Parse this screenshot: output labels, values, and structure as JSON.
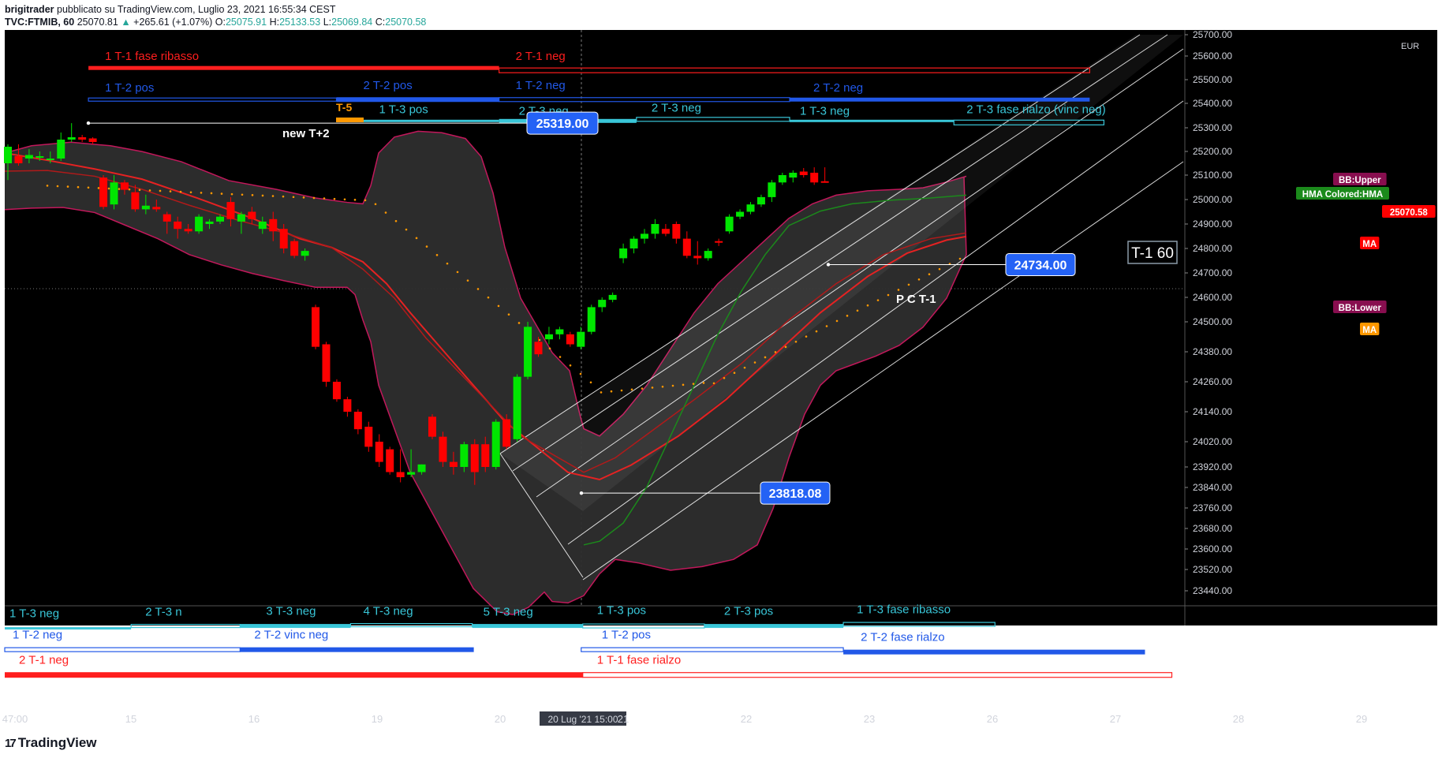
{
  "header": {
    "author": "brigitrader",
    "published": "pubblicato su TradingView.com, Luglio 23, 2021 16:55:34 CEST",
    "symbol": "TVC:FTMIB, 60",
    "last": "25070.81",
    "change": "+265.61 (+1.07%)",
    "o_label": "O:",
    "o": "25075.91",
    "h_label": "H:",
    "h": "25133.53",
    "l_label": "L:",
    "l": "25069.84",
    "c_label": "C:",
    "c": "25070.58"
  },
  "colors": {
    "background": "#000000",
    "up": "#00e600",
    "down": "#ff0000",
    "bb_band": "#c2185b",
    "bb_fill": "#2e2e2e",
    "ma_red": "#e52222",
    "ma_orange": "#ff9800",
    "hma": "#1b8a1b",
    "red_level": "#ff1e1e",
    "blue_level": "#2158e8",
    "cyan_level": "#39c6d8",
    "label_blue": "#2462f5",
    "white_text": "#ffffff"
  },
  "chart_data": {
    "type": "candlestick",
    "price_axis": {
      "ticks": [
        "25700.00",
        "25600.00",
        "25500.00",
        "25400.00",
        "25300.00",
        "25200.00",
        "25100.00",
        "25000.00",
        "24900.00",
        "24800.00",
        "24700.00",
        "24600.00",
        "24500.00",
        "24380.00",
        "24260.00",
        "24140.00",
        "24020.00",
        "23920.00",
        "23840.00",
        "23760.00",
        "23680.00",
        "23600.00",
        "23520.00",
        "23440.00"
      ],
      "currency": "EUR"
    },
    "time_axis": {
      "ticks": [
        "47:00",
        "15",
        "16",
        "19",
        "20",
        "20 Lug '21  15:00",
        "21",
        "22",
        "23",
        "26",
        "27",
        "28",
        "29"
      ]
    },
    "candles": [
      {
        "o": 25150,
        "h": 25230,
        "l": 25080,
        "c": 25220
      },
      {
        "o": 25180,
        "h": 25230,
        "l": 25140,
        "c": 25150
      },
      {
        "o": 25170,
        "h": 25210,
        "l": 25150,
        "c": 25185
      },
      {
        "o": 25175,
        "h": 25200,
        "l": 25160,
        "c": 25180
      },
      {
        "o": 25165,
        "h": 25200,
        "l": 25150,
        "c": 25170
      },
      {
        "o": 25170,
        "h": 25280,
        "l": 25160,
        "c": 25250
      },
      {
        "o": 25250,
        "h": 25319,
        "l": 25240,
        "c": 25260
      },
      {
        "o": 25260,
        "h": 25270,
        "l": 25240,
        "c": 25250
      },
      {
        "o": 25255,
        "h": 25260,
        "l": 25230,
        "c": 25240
      },
      {
        "o": 25090,
        "h": 25100,
        "l": 24960,
        "c": 24970
      },
      {
        "o": 24980,
        "h": 25100,
        "l": 24960,
        "c": 25070
      },
      {
        "o": 25070,
        "h": 25080,
        "l": 25020,
        "c": 25040
      },
      {
        "o": 25030,
        "h": 25060,
        "l": 24950,
        "c": 24960
      },
      {
        "o": 24960,
        "h": 25020,
        "l": 24940,
        "c": 24975
      },
      {
        "o": 24970,
        "h": 25000,
        "l": 24950,
        "c": 24960
      },
      {
        "o": 24940,
        "h": 24950,
        "l": 24860,
        "c": 24910
      },
      {
        "o": 24910,
        "h": 24930,
        "l": 24840,
        "c": 24880
      },
      {
        "o": 24880,
        "h": 24900,
        "l": 24860,
        "c": 24870
      },
      {
        "o": 24870,
        "h": 24940,
        "l": 24860,
        "c": 24930
      },
      {
        "o": 24900,
        "h": 24920,
        "l": 24880,
        "c": 24910
      },
      {
        "o": 24910,
        "h": 24940,
        "l": 24900,
        "c": 24930
      },
      {
        "o": 24990,
        "h": 25010,
        "l": 24890,
        "c": 24920
      },
      {
        "o": 24910,
        "h": 24950,
        "l": 24860,
        "c": 24940
      },
      {
        "o": 24950,
        "h": 24970,
        "l": 24900,
        "c": 24920
      },
      {
        "o": 24880,
        "h": 24930,
        "l": 24860,
        "c": 24910
      },
      {
        "o": 24920,
        "h": 24950,
        "l": 24830,
        "c": 24870
      },
      {
        "o": 24880,
        "h": 24900,
        "l": 24780,
        "c": 24800
      },
      {
        "o": 24830,
        "h": 24840,
        "l": 24760,
        "c": 24770
      },
      {
        "o": 24770,
        "h": 24800,
        "l": 24750,
        "c": 24790
      },
      {
        "o": 24560,
        "h": 24570,
        "l": 24390,
        "c": 24400
      },
      {
        "o": 24410,
        "h": 24420,
        "l": 24240,
        "c": 24260
      },
      {
        "o": 24260,
        "h": 24270,
        "l": 24180,
        "c": 24190
      },
      {
        "o": 24190,
        "h": 24200,
        "l": 24120,
        "c": 24140
      },
      {
        "o": 24140,
        "h": 24150,
        "l": 24050,
        "c": 24070
      },
      {
        "o": 24080,
        "h": 24100,
        "l": 23980,
        "c": 24000
      },
      {
        "o": 24020,
        "h": 24050,
        "l": 23920,
        "c": 23940
      },
      {
        "o": 23990,
        "h": 24000,
        "l": 23890,
        "c": 23900
      },
      {
        "o": 23900,
        "h": 23990,
        "l": 23860,
        "c": 23880
      },
      {
        "o": 23890,
        "h": 23990,
        "l": 23880,
        "c": 23900
      },
      {
        "o": 23900,
        "h": 23930,
        "l": 23890,
        "c": 23930
      },
      {
        "o": 24120,
        "h": 24130,
        "l": 24030,
        "c": 24040
      },
      {
        "o": 24040,
        "h": 24060,
        "l": 23920,
        "c": 23940
      },
      {
        "o": 23940,
        "h": 23980,
        "l": 23890,
        "c": 23920
      },
      {
        "o": 23920,
        "h": 24020,
        "l": 23900,
        "c": 24010
      },
      {
        "o": 24010,
        "h": 24030,
        "l": 23850,
        "c": 23900
      },
      {
        "o": 24010,
        "h": 24040,
        "l": 23900,
        "c": 23920
      },
      {
        "o": 23920,
        "h": 24110,
        "l": 23910,
        "c": 24100
      },
      {
        "o": 24110,
        "h": 24130,
        "l": 23990,
        "c": 24000
      },
      {
        "o": 24030,
        "h": 24290,
        "l": 24020,
        "c": 24280
      },
      {
        "o": 24280,
        "h": 24500,
        "l": 24270,
        "c": 24480
      },
      {
        "o": 24420,
        "h": 24440,
        "l": 24360,
        "c": 24370
      },
      {
        "o": 24430,
        "h": 24480,
        "l": 24410,
        "c": 24450
      },
      {
        "o": 24450,
        "h": 24480,
        "l": 24430,
        "c": 24470
      },
      {
        "o": 24450,
        "h": 24460,
        "l": 24400,
        "c": 24410
      },
      {
        "o": 24400,
        "h": 24480,
        "l": 24390,
        "c": 24460
      },
      {
        "o": 24460,
        "h": 24570,
        "l": 24450,
        "c": 24560
      },
      {
        "o": 24560,
        "h": 24600,
        "l": 24540,
        "c": 24590
      },
      {
        "o": 24590,
        "h": 24620,
        "l": 24580,
        "c": 24610
      },
      {
        "o": 24760,
        "h": 24820,
        "l": 24740,
        "c": 24800
      },
      {
        "o": 24800,
        "h": 24850,
        "l": 24780,
        "c": 24840
      },
      {
        "o": 24840,
        "h": 24880,
        "l": 24820,
        "c": 24860
      },
      {
        "o": 24860,
        "h": 24920,
        "l": 24840,
        "c": 24900
      },
      {
        "o": 24880,
        "h": 24900,
        "l": 24850,
        "c": 24860
      },
      {
        "o": 24900,
        "h": 24910,
        "l": 24820,
        "c": 24840
      },
      {
        "o": 24840,
        "h": 24870,
        "l": 24760,
        "c": 24770
      },
      {
        "o": 24770,
        "h": 24830,
        "l": 24734,
        "c": 24760
      },
      {
        "o": 24760,
        "h": 24800,
        "l": 24750,
        "c": 24790
      },
      {
        "o": 24830,
        "h": 24840,
        "l": 24810,
        "c": 24825
      },
      {
        "o": 24870,
        "h": 24940,
        "l": 24860,
        "c": 24930
      },
      {
        "o": 24930,
        "h": 24960,
        "l": 24920,
        "c": 24950
      },
      {
        "o": 24950,
        "h": 24990,
        "l": 24940,
        "c": 24980
      },
      {
        "o": 24980,
        "h": 25020,
        "l": 24970,
        "c": 25010
      },
      {
        "o": 25010,
        "h": 25080,
        "l": 24990,
        "c": 25070
      },
      {
        "o": 25070,
        "h": 25110,
        "l": 25060,
        "c": 25100
      },
      {
        "o": 25090,
        "h": 25120,
        "l": 25070,
        "c": 25110
      },
      {
        "o": 25115,
        "h": 25130,
        "l": 25090,
        "c": 25100
      },
      {
        "o": 25110,
        "h": 25133,
        "l": 25060,
        "c": 25070
      },
      {
        "o": 25075,
        "h": 25133,
        "l": 25069,
        "c": 25071
      }
    ],
    "price_labels": [
      {
        "text": "25319.00",
        "price": 25319
      },
      {
        "text": "24734.00",
        "price": 24734
      },
      {
        "text": "23818.08",
        "price": 23818
      }
    ],
    "right_labels": [
      {
        "text": "BB:Upper",
        "color": "#880e4f"
      },
      {
        "text": "HMA Colored:HMA",
        "color": "#1b8a1b"
      },
      {
        "text": "25070.58",
        "color": "#ff0000"
      },
      {
        "text": "MA",
        "color": "#ff0000"
      },
      {
        "text": "BB:Lower",
        "color": "#880e4f"
      },
      {
        "text": "MA",
        "color": "#ff9800"
      }
    ],
    "annotations": {
      "new_t2": "new T+2",
      "pct1": "P C T-1",
      "t5": "T-5",
      "t1_60": "T-1 60"
    },
    "levels": [
      {
        "text": "1 T-1 fase ribasso",
        "color": "red"
      },
      {
        "text": "2 T-1 neg",
        "color": "red"
      },
      {
        "text": "1 T-2 pos",
        "color": "blue"
      },
      {
        "text": "2 T-2 pos",
        "color": "blue"
      },
      {
        "text": "1 T-2 neg",
        "color": "blue"
      },
      {
        "text": "2 T-2 neg",
        "color": "blue"
      },
      {
        "text": "1 T-3 pos",
        "color": "cyan"
      },
      {
        "text": "2 T-3 neg",
        "color": "cyan"
      },
      {
        "text": "2 T-3 neg",
        "color": "cyan"
      },
      {
        "text": "1 T-3 neg",
        "color": "cyan"
      },
      {
        "text": "2 T-3 fase rialzo (vinc neg)",
        "color": "cyan"
      },
      {
        "text": "1 T-3 neg",
        "color": "cyan"
      },
      {
        "text": "2 T-3 n",
        "color": "cyan"
      },
      {
        "text": "3 T-3 neg",
        "color": "cyan"
      },
      {
        "text": "4 T-3 neg",
        "color": "cyan"
      },
      {
        "text": "5  T-3 neg",
        "color": "cyan"
      },
      {
        "text": "1 T-3 pos",
        "color": "cyan"
      },
      {
        "text": "2 T-3 pos",
        "color": "cyan"
      },
      {
        "text": "1 T-3 fase ribasso",
        "color": "cyan"
      },
      {
        "text": "1 T-2 neg",
        "color": "blue"
      },
      {
        "text": "2 T-2 vinc neg",
        "color": "blue"
      },
      {
        "text": "1 T-2 pos",
        "color": "blue"
      },
      {
        "text": "2 T-2 fase rialzo",
        "color": "blue"
      },
      {
        "text": "2 T-1 neg",
        "color": "red"
      },
      {
        "text": "1 T-1 fase rialzo",
        "color": "red"
      }
    ]
  },
  "footer": {
    "brand": "TradingView",
    "logo": "17"
  }
}
